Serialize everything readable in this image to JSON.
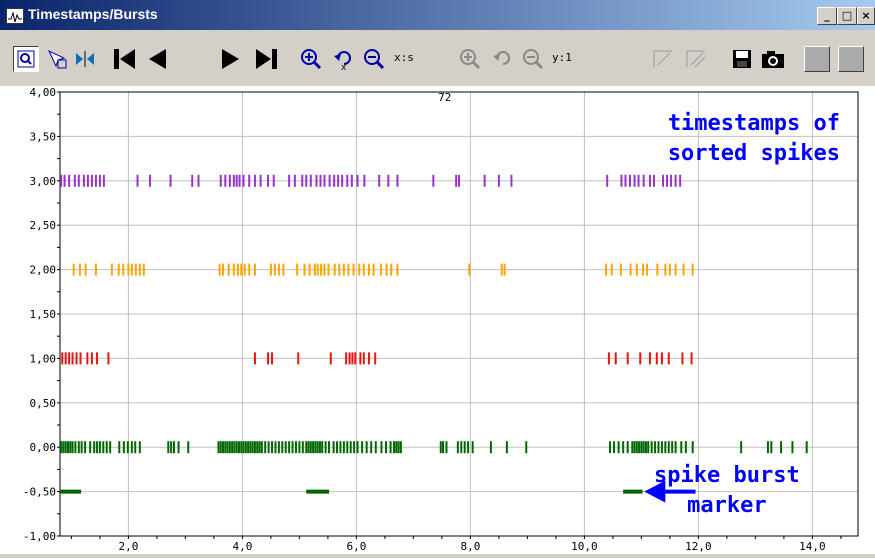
{
  "window": {
    "title": "Timestamps/Bursts"
  },
  "toolbar": {
    "x_scale_label": "x:s",
    "y_scale_label": "y:1"
  },
  "colors": {
    "purple": "#9933cc",
    "orange": "#ffa500",
    "red": "#ee1111",
    "green": "#006600",
    "annotation": "#0000ff",
    "grid": "#c0c0c0"
  },
  "annotations": {
    "top_right": [
      "timestamps of",
      "sorted spikes"
    ],
    "bottom_right": [
      "spike burst",
      "marker"
    ]
  },
  "chart_data": {
    "type": "scatter",
    "subtitle": "72",
    "xlim": [
      0.8,
      14.8
    ],
    "ylim": [
      -1.0,
      4.0
    ],
    "xticks": [
      2.0,
      4.0,
      6.0,
      8.0,
      10.0,
      12.0,
      14.0
    ],
    "xtick_labels": [
      "2,0",
      "4,0",
      "6,0",
      "8,0",
      "10,0",
      "12,0",
      "14,0"
    ],
    "yticks": [
      -1.0,
      -0.5,
      0.0,
      0.5,
      1.0,
      1.5,
      2.0,
      2.5,
      3.0,
      3.5,
      4.0
    ],
    "ytick_labels": [
      "-1,00",
      "-0,50",
      "0,00",
      "0,50",
      "1,00",
      "1,50",
      "2,00",
      "2,50",
      "3,00",
      "3,50",
      "4,00"
    ],
    "grid": true,
    "series": [
      {
        "color": "purple",
        "y": 3.0,
        "x": [
          0.82,
          0.88,
          0.96,
          1.06,
          1.13,
          1.22,
          1.29,
          1.36,
          1.43,
          1.5,
          1.57,
          2.16,
          2.38,
          2.74,
          3.12,
          3.23,
          3.62,
          3.7,
          3.78,
          3.85,
          3.9,
          3.95,
          4.02,
          4.12,
          4.22,
          4.32,
          4.45,
          4.55,
          4.82,
          4.92,
          5.05,
          5.12,
          5.2,
          5.3,
          5.37,
          5.44,
          5.53,
          5.61,
          5.68,
          5.75,
          5.84,
          5.92,
          6.02,
          6.14,
          6.4,
          6.56,
          6.72,
          7.35,
          7.75,
          7.8,
          8.25,
          8.5,
          8.72,
          10.4,
          10.65,
          10.72,
          10.8,
          10.88,
          10.95,
          11.04,
          11.15,
          11.22,
          11.38,
          11.45,
          11.52,
          11.6,
          11.68
        ]
      },
      {
        "color": "orange",
        "y": 2.0,
        "x": [
          1.04,
          1.15,
          1.25,
          1.43,
          1.71,
          1.83,
          1.91,
          2.0,
          2.06,
          2.13,
          2.2,
          2.27,
          3.6,
          3.66,
          3.76,
          3.85,
          3.92,
          3.98,
          4.04,
          4.12,
          4.22,
          4.5,
          4.57,
          4.64,
          4.72,
          4.96,
          5.09,
          5.18,
          5.27,
          5.32,
          5.38,
          5.44,
          5.51,
          5.62,
          5.7,
          5.78,
          5.86,
          5.95,
          6.05,
          6.13,
          6.22,
          6.3,
          6.43,
          6.53,
          6.61,
          6.72,
          7.98,
          8.55,
          8.6,
          10.38,
          10.48,
          10.64,
          10.81,
          10.92,
          11.03,
          11.1,
          11.28,
          11.42,
          11.5,
          11.6,
          11.74,
          11.9
        ]
      },
      {
        "color": "red",
        "y": 1.0,
        "x": [
          0.84,
          0.9,
          0.96,
          1.02,
          1.09,
          1.16,
          1.28,
          1.36,
          1.45,
          1.65,
          4.22,
          4.45,
          4.52,
          4.98,
          5.55,
          5.82,
          5.88,
          5.93,
          5.98,
          6.07,
          6.13,
          6.22,
          6.33,
          10.43,
          10.55,
          10.76,
          10.98,
          11.15,
          11.27,
          11.36,
          11.48,
          11.72,
          11.88
        ]
      },
      {
        "color": "green",
        "y": 0.0,
        "x": [
          0.82,
          0.86,
          0.9,
          0.94,
          0.98,
          1.02,
          1.07,
          1.13,
          1.18,
          1.24,
          1.33,
          1.4,
          1.45,
          1.5,
          1.56,
          1.62,
          1.68,
          1.84,
          1.92,
          1.99,
          2.06,
          2.12,
          2.2,
          2.7,
          2.75,
          2.8,
          2.88,
          3.05,
          3.58,
          3.62,
          3.66,
          3.7,
          3.74,
          3.78,
          3.82,
          3.86,
          3.9,
          3.94,
          3.98,
          4.02,
          4.06,
          4.1,
          4.14,
          4.18,
          4.22,
          4.26,
          4.3,
          4.34,
          4.4,
          4.46,
          4.52,
          4.58,
          4.64,
          4.7,
          4.76,
          4.82,
          4.88,
          4.94,
          5.0,
          5.06,
          5.12,
          5.16,
          5.2,
          5.24,
          5.28,
          5.32,
          5.36,
          5.4,
          5.46,
          5.52,
          5.6,
          5.66,
          5.72,
          5.78,
          5.84,
          5.9,
          5.96,
          6.02,
          6.1,
          6.18,
          6.26,
          6.34,
          6.44,
          6.52,
          6.6,
          6.66,
          6.7,
          6.74,
          6.78,
          7.48,
          7.52,
          7.58,
          7.78,
          7.84,
          7.9,
          7.96,
          8.04,
          8.36,
          8.64,
          8.98,
          10.45,
          10.52,
          10.6,
          10.68,
          10.76,
          10.84,
          10.88,
          10.92,
          10.96,
          11.0,
          11.04,
          11.08,
          11.12,
          11.18,
          11.24,
          11.3,
          11.36,
          11.42,
          11.48,
          11.54,
          11.6,
          11.7,
          11.78,
          11.9,
          12.75,
          13.22,
          13.28,
          13.45,
          13.65,
          13.9
        ]
      },
      {
        "color": "green",
        "y": -0.5,
        "type": "burst",
        "bursts": [
          [
            0.8,
            1.17
          ],
          [
            5.12,
            5.52
          ],
          [
            10.68,
            11.02
          ]
        ]
      }
    ]
  }
}
